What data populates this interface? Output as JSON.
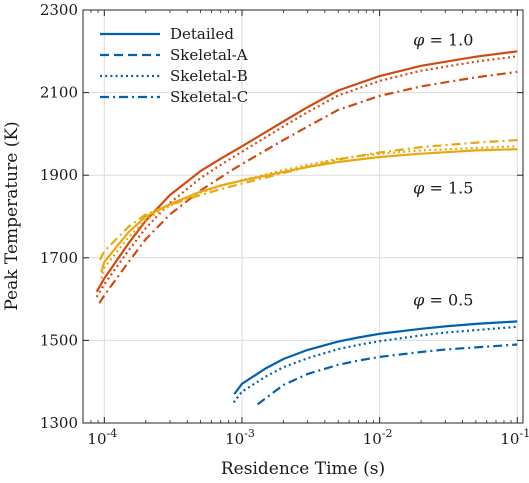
{
  "chart_data": {
    "type": "line",
    "xlabel": "Residence Time (s)",
    "ylabel": "Peak Temperature (K)",
    "xscale": "log",
    "xlim": [
      7e-05,
      0.11
    ],
    "ylim": [
      1300,
      2300
    ],
    "grid": true,
    "legend_position": "top-left",
    "x_ticks": [
      {
        "value": 0.0001,
        "base": "10",
        "exp": "-4"
      },
      {
        "value": 0.001,
        "base": "10",
        "exp": "-3"
      },
      {
        "value": 0.01,
        "base": "10",
        "exp": "-2"
      },
      {
        "value": 0.1,
        "base": "10",
        "exp": "-1"
      }
    ],
    "y_ticks": [
      {
        "value": 1300,
        "label": "1300"
      },
      {
        "value": 1500,
        "label": "1500"
      },
      {
        "value": 1700,
        "label": "1700"
      },
      {
        "value": 1900,
        "label": "1900"
      },
      {
        "value": 2100,
        "label": "2100"
      },
      {
        "value": 2300,
        "label": "2300"
      }
    ],
    "legend": [
      {
        "label": "Detailed",
        "dash": "solid"
      },
      {
        "label": "Skeletal-A",
        "dash": "dashed"
      },
      {
        "label": "Skeletal-B",
        "dash": "dotted"
      },
      {
        "label": "Skeletal-C",
        "dash": "dashdot"
      }
    ],
    "legend_color": "#0061b1",
    "annotations": [
      {
        "phi_symbol": "φ",
        "text": " = 1.0",
        "x": 0.029,
        "y": 2214
      },
      {
        "phi_symbol": "φ",
        "text": " = 1.5",
        "x": 0.029,
        "y": 1856
      },
      {
        "phi_symbol": "φ",
        "text": " = 0.5",
        "x": 0.029,
        "y": 1585
      }
    ],
    "series": [
      {
        "group": "phi-1.0",
        "name": "Detailed",
        "color": "#d04a12",
        "dash": "solid",
        "x": [
          8.8e-05,
          0.0001,
          0.00015,
          0.0002,
          0.0003,
          0.0005,
          0.0007,
          0.001,
          0.002,
          0.003,
          0.005,
          0.01,
          0.02,
          0.05,
          0.1
        ],
        "y": [
          1618,
          1650,
          1735,
          1790,
          1852,
          1910,
          1940,
          1970,
          2030,
          2065,
          2105,
          2140,
          2165,
          2187,
          2200
        ]
      },
      {
        "group": "phi-1.0",
        "name": "Skeletal-B",
        "color": "#d04a12",
        "dash": "dotted",
        "x": [
          8.8e-05,
          0.0001,
          0.00015,
          0.0002,
          0.0003,
          0.0005,
          0.0007,
          0.001,
          0.002,
          0.003,
          0.005,
          0.01,
          0.02,
          0.05,
          0.1
        ],
        "y": [
          1605,
          1636,
          1718,
          1772,
          1833,
          1893,
          1925,
          1957,
          2018,
          2053,
          2093,
          2128,
          2153,
          2175,
          2188
        ]
      },
      {
        "group": "phi-1.0",
        "name": "Skeletal-C",
        "color": "#d04a12",
        "dash": "dashdot",
        "x": [
          9.2e-05,
          0.0001,
          0.00015,
          0.0002,
          0.0003,
          0.0005,
          0.0007,
          0.001,
          0.002,
          0.003,
          0.005,
          0.01,
          0.02,
          0.05,
          0.1
        ],
        "y": [
          1590,
          1609,
          1690,
          1745,
          1805,
          1863,
          1895,
          1927,
          1985,
          2018,
          2058,
          2092,
          2115,
          2137,
          2150
        ]
      },
      {
        "group": "phi-1.5",
        "name": "Detailed",
        "color": "#e8a80e",
        "dash": "solid",
        "x": [
          9.5e-05,
          0.0001,
          0.00015,
          0.0002,
          0.0003,
          0.0005,
          0.0007,
          0.001,
          0.002,
          0.003,
          0.005,
          0.01,
          0.02,
          0.05,
          0.1
        ],
        "y": [
          1665,
          1690,
          1762,
          1800,
          1830,
          1860,
          1875,
          1887,
          1908,
          1920,
          1932,
          1944,
          1952,
          1960,
          1963
        ]
      },
      {
        "group": "phi-1.5",
        "name": "Skeletal-C",
        "color": "#e8a80e",
        "dash": "dashdot",
        "x": [
          9.3e-05,
          0.0001,
          0.00015,
          0.0002,
          0.0003,
          0.0005,
          0.0007,
          0.001,
          0.002,
          0.003,
          0.005,
          0.01,
          0.02,
          0.05,
          0.1
        ],
        "y": [
          1695,
          1716,
          1775,
          1805,
          1828,
          1852,
          1866,
          1880,
          1905,
          1920,
          1938,
          1955,
          1968,
          1979,
          1985
        ]
      },
      {
        "group": "phi-1.5",
        "name": "Skeletal-B",
        "color": "#e8a80e",
        "dash": "dotted",
        "x": [
          9.5e-05,
          0.0001,
          0.00015,
          0.0002,
          0.0003,
          0.0005,
          0.0007,
          0.001,
          0.002,
          0.003,
          0.005,
          0.01,
          0.02,
          0.05,
          0.1
        ],
        "y": [
          1650,
          1676,
          1750,
          1792,
          1826,
          1858,
          1874,
          1888,
          1912,
          1925,
          1940,
          1952,
          1960,
          1966,
          1970
        ]
      },
      {
        "group": "phi-0.5",
        "name": "Detailed",
        "color": "#0061b1",
        "dash": "solid",
        "x": [
          0.00088,
          0.001,
          0.0015,
          0.002,
          0.003,
          0.005,
          0.007,
          0.01,
          0.02,
          0.03,
          0.05,
          0.1
        ],
        "y": [
          1370,
          1395,
          1433,
          1455,
          1477,
          1497,
          1507,
          1516,
          1528,
          1534,
          1540,
          1546
        ]
      },
      {
        "group": "phi-0.5",
        "name": "Skeletal-B",
        "color": "#0061b1",
        "dash": "dotted",
        "x": [
          0.00087,
          0.001,
          0.0015,
          0.002,
          0.003,
          0.005,
          0.007,
          0.01,
          0.02,
          0.03,
          0.05,
          0.1
        ],
        "y": [
          1350,
          1376,
          1413,
          1435,
          1457,
          1479,
          1489,
          1498,
          1512,
          1519,
          1525,
          1533
        ]
      },
      {
        "group": "phi-0.5",
        "name": "Skeletal-C",
        "color": "#0061b1",
        "dash": "dashdot",
        "x": [
          0.0013,
          0.0015,
          0.002,
          0.003,
          0.005,
          0.007,
          0.01,
          0.02,
          0.03,
          0.05,
          0.1
        ],
        "y": [
          1345,
          1361,
          1392,
          1419,
          1441,
          1451,
          1460,
          1472,
          1478,
          1483,
          1490
        ]
      }
    ]
  }
}
